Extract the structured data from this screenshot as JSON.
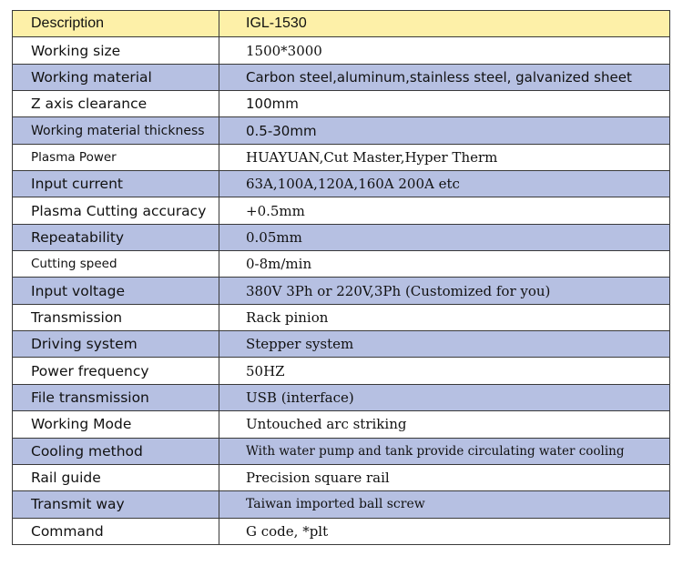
{
  "header": {
    "label": "Description",
    "value": "IGL-1530"
  },
  "rows": [
    {
      "label": "Working size",
      "value": "1500*3000"
    },
    {
      "label": "Working material",
      "value": "Carbon steel,aluminum,stainless steel, galvanized sheet"
    },
    {
      "label": "Z axis clearance",
      "value": "100mm"
    },
    {
      "label": "Working material thickness",
      "value": "0.5-30mm"
    },
    {
      "label": "Plasma Power",
      "value": "HUAYUAN,Cut Master,Hyper Therm"
    },
    {
      "label": "Input current",
      "value": "63A,100A,120A,160A 200A etc"
    },
    {
      "label": "Plasma Cutting accuracy",
      "value": "+0.5mm"
    },
    {
      "label": "Repeatability",
      "value": "0.05mm"
    },
    {
      "label": "Cutting speed",
      "value": "0-8m/min"
    },
    {
      "label": "Input voltage",
      "value": "380V 3Ph or 220V,3Ph (Customized for you)"
    },
    {
      "label": "Transmission",
      "value": "Rack pinion"
    },
    {
      "label": "Driving system",
      "value": "Stepper system"
    },
    {
      "label": "Power frequency",
      "value": "50HZ"
    },
    {
      "label": "File transmission",
      "value": "USB (interface)"
    },
    {
      "label": "Working Mode",
      "value": "Untouched arc striking"
    },
    {
      "label": "Cooling method",
      "value": "With water pump and tank provide circulating water cooling"
    },
    {
      "label": "Rail guide",
      "value": "Precision square rail"
    },
    {
      "label": "Transmit way",
      "value": "Taiwan imported ball screw"
    },
    {
      "label": "Command",
      "value": "G code, *plt"
    }
  ],
  "colors": {
    "header_bg": "#fdf0a8",
    "shaded_row_bg": "#b6c0e2",
    "plain_row_bg": "#ffffff",
    "border": "#3a3a3a"
  }
}
